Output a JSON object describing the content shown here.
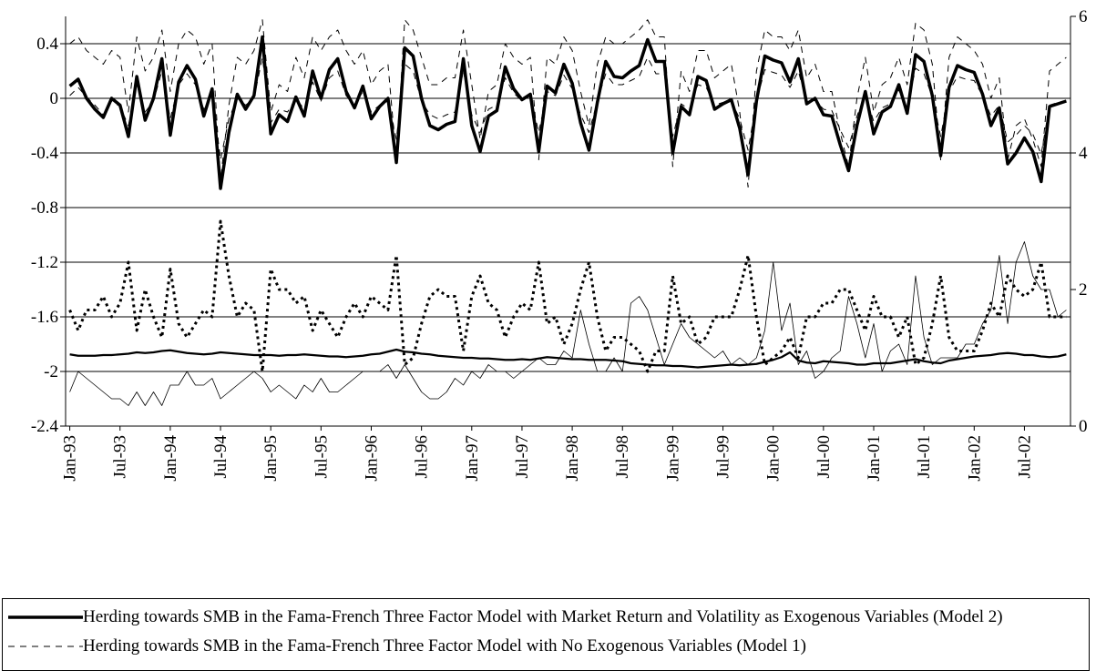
{
  "chart_data": {
    "type": "line",
    "categories": [
      "Jan-93",
      null,
      null,
      null,
      null,
      null,
      "Jul-93",
      null,
      null,
      null,
      null,
      null,
      "Jan-94",
      null,
      null,
      null,
      null,
      null,
      "Jul-94",
      null,
      null,
      null,
      null,
      null,
      "Jan-95",
      null,
      null,
      null,
      null,
      null,
      "Jul-95",
      null,
      null,
      null,
      null,
      null,
      "Jan-96",
      null,
      null,
      null,
      null,
      null,
      "Jul-96",
      null,
      null,
      null,
      null,
      null,
      "Jan-97",
      null,
      null,
      null,
      null,
      null,
      "Jul-97",
      null,
      null,
      null,
      null,
      null,
      "Jan-98",
      null,
      null,
      null,
      null,
      null,
      "Jul-98",
      null,
      null,
      null,
      null,
      null,
      "Jan-99",
      null,
      null,
      null,
      null,
      null,
      "Jul-99",
      null,
      null,
      null,
      null,
      null,
      "Jan-00",
      null,
      null,
      null,
      null,
      null,
      "Jul-00",
      null,
      null,
      null,
      null,
      null,
      "Jan-01",
      null,
      null,
      null,
      null,
      null,
      "Jul-01",
      null,
      null,
      null,
      null,
      null,
      "Jan-02",
      null,
      null,
      null,
      null,
      null,
      "Jul-02",
      null,
      null,
      null,
      null,
      null
    ],
    "ylim": [
      -2.4,
      0.6
    ],
    "yticks": [
      -2.4,
      -2,
      -1.6,
      -1.2,
      -0.8,
      -0.4,
      0,
      0.4
    ],
    "y2lim": [
      0,
      6
    ],
    "y2ticks": [
      0,
      2,
      4,
      6
    ],
    "grid": true,
    "series": [
      {
        "name": "Herding towards SMB in the Fama-French Three Factor Model with Market Return and Volatility as Exogenous Variables (Model 2)",
        "color": "#000000",
        "line_style": "solid",
        "width": 3.5,
        "values": [
          0.09,
          0.14,
          0,
          -0.08,
          -0.14,
          0,
          -0.05,
          -0.28,
          0.16,
          -0.16,
          0,
          0.29,
          -0.27,
          0.12,
          0.24,
          0.14,
          -0.13,
          0.07,
          -0.66,
          -0.25,
          0.03,
          -0.08,
          0.02,
          0.45,
          -0.26,
          -0.12,
          -0.17,
          0.01,
          -0.13,
          0.2,
          0,
          0.21,
          0.29,
          0.05,
          -0.07,
          0.09,
          -0.15,
          -0.06,
          0,
          -0.47,
          0.37,
          0.31,
          0,
          -0.2,
          -0.23,
          -0.19,
          -0.17,
          0.29,
          -0.2,
          -0.39,
          -0.13,
          -0.09,
          0.23,
          0.07,
          -0.01,
          0.03,
          -0.39,
          0.09,
          0.04,
          0.25,
          0.11,
          -0.18,
          -0.38,
          -0.03,
          0.27,
          0.16,
          0.15,
          0.2,
          0.24,
          0.43,
          0.27,
          0.27,
          -0.4,
          -0.06,
          -0.12,
          0.16,
          0.13,
          -0.08,
          -0.04,
          -0.01,
          -0.22,
          -0.56,
          -0.02,
          0.31,
          0.28,
          0.26,
          0.12,
          0.29,
          -0.04,
          0,
          -0.12,
          -0.13,
          -0.34,
          -0.53,
          -0.2,
          0.05,
          -0.26,
          -0.1,
          -0.06,
          0.1,
          -0.11,
          0.32,
          0.27,
          0.02,
          -0.42,
          0.08,
          0.24,
          0.21,
          0.19,
          0.03,
          -0.2,
          -0.07,
          -0.48,
          -0.4,
          -0.29,
          -0.39,
          -0.61,
          -0.06,
          -0.04,
          -0.02
        ]
      },
      {
        "name": "Herding towards SMB in the Fama-French Three Factor Model with No Exogenous Variables (Model 1)",
        "color": "#000000",
        "line_style": "dashed",
        "width": 1,
        "values": [
          0.02,
          0.08,
          0.01,
          -0.05,
          -0.12,
          -0.02,
          -0.06,
          -0.2,
          0.1,
          -0.1,
          -0.02,
          0.2,
          -0.15,
          0.1,
          0.18,
          0.1,
          -0.08,
          0.05,
          -0.45,
          -0.15,
          0,
          -0.05,
          0,
          0.3,
          -0.18,
          -0.08,
          -0.1,
          0,
          -0.08,
          0.12,
          -0.02,
          0.15,
          0.2,
          0.02,
          -0.05,
          0.05,
          -0.1,
          -0.05,
          -0.02,
          -0.3,
          0.25,
          0.2,
          -0.02,
          -0.12,
          -0.15,
          -0.12,
          -0.1,
          0.2,
          -0.12,
          -0.25,
          -0.08,
          -0.05,
          0.15,
          0.04,
          -0.02,
          0.02,
          -0.25,
          0.05,
          0.02,
          0.17,
          0.07,
          -0.12,
          -0.25,
          -0.02,
          0.18,
          0.1,
          0.1,
          0.13,
          0.16,
          0.3,
          0.18,
          0.18,
          -0.28,
          -0.04,
          -0.08,
          0.1,
          0.08,
          -0.05,
          -0.03,
          -0.02,
          -0.15,
          -0.38,
          -0.02,
          0.21,
          0.19,
          0.17,
          0.08,
          0.2,
          -0.03,
          -0.01,
          -0.08,
          -0.09,
          -0.23,
          -0.36,
          -0.13,
          0.03,
          -0.17,
          -0.07,
          -0.04,
          0.06,
          -0.07,
          0.22,
          0.18,
          0.01,
          -0.28,
          0.05,
          0.16,
          0.14,
          0.13,
          0.02,
          -0.13,
          -0.05,
          -0.32,
          -0.27,
          -0.2,
          -0.26,
          -0.41,
          -0.05,
          -0.03,
          -0.02
        ]
      },
      {
        "color": "#000000",
        "line_style": "dashed",
        "width": 1,
        "axis": "y2",
        "values": [
          5.6,
          5.7,
          5.5,
          5.4,
          5.3,
          5.5,
          5.4,
          4.6,
          5.7,
          5.2,
          5.4,
          5.8,
          4.9,
          5.6,
          5.8,
          5.7,
          5.3,
          5.6,
          3.6,
          4.7,
          5.4,
          5.3,
          5.5,
          5.95,
          4.6,
          5.0,
          4.9,
          5.4,
          5.1,
          5.7,
          5.5,
          5.7,
          5.8,
          5.5,
          5.3,
          5.5,
          5.0,
          5.2,
          5.3,
          3.9,
          5.95,
          5.8,
          5.4,
          5.0,
          5.0,
          5.1,
          5.1,
          5.8,
          5.0,
          4.2,
          4.9,
          5.0,
          5.6,
          5.4,
          5.3,
          5.4,
          3.9,
          5.4,
          5.3,
          5.7,
          5.5,
          4.9,
          4.4,
          5.3,
          5.7,
          5.6,
          5.6,
          5.7,
          5.8,
          5.95,
          5.7,
          5.7,
          3.8,
          5.2,
          4.9,
          5.5,
          5.5,
          5.1,
          5.2,
          5.3,
          4.6,
          3.5,
          5.2,
          5.8,
          5.7,
          5.7,
          5.5,
          5.8,
          5.1,
          5.3,
          4.9,
          4.9,
          4.3,
          3.8,
          4.8,
          5.4,
          4.6,
          5.0,
          5.1,
          5.4,
          5.0,
          5.9,
          5.8,
          5.3,
          3.9,
          5.4,
          5.7,
          5.6,
          5.5,
          5.3,
          4.8,
          5.1,
          3.9,
          4.4,
          4.5,
          4.2,
          3.8,
          5.2,
          5.3,
          5.4
        ]
      },
      {
        "color": "#000000",
        "line_style": "dotted",
        "width": 3,
        "axis": "y2",
        "values": [
          1.7,
          1.4,
          1.7,
          1.7,
          1.9,
          1.6,
          1.8,
          2.4,
          1.4,
          2.0,
          1.6,
          1.3,
          2.3,
          1.5,
          1.3,
          1.5,
          1.7,
          1.6,
          3.0,
          2.2,
          1.6,
          1.8,
          1.7,
          0.8,
          2.3,
          2.0,
          2.0,
          1.8,
          1.9,
          1.4,
          1.7,
          1.5,
          1.3,
          1.6,
          1.8,
          1.6,
          1.9,
          1.8,
          1.7,
          2.5,
          0.9,
          1.0,
          1.5,
          1.9,
          2.0,
          1.9,
          1.9,
          1.1,
          1.9,
          2.2,
          1.8,
          1.7,
          1.3,
          1.6,
          1.8,
          1.7,
          2.4,
          1.5,
          1.6,
          1.2,
          1.5,
          2.0,
          2.4,
          1.6,
          1.1,
          1.3,
          1.3,
          1.2,
          1.1,
          0.8,
          1.1,
          1.1,
          2.2,
          1.5,
          1.6,
          1.2,
          1.3,
          1.6,
          1.6,
          1.6,
          2.0,
          2.5,
          1.6,
          0.9,
          1.0,
          1.1,
          1.3,
          1.0,
          1.6,
          1.6,
          1.8,
          1.8,
          2.0,
          2.0,
          1.7,
          1.4,
          1.9,
          1.6,
          1.6,
          1.3,
          1.6,
          0.9,
          1.0,
          1.5,
          2.2,
          1.3,
          1.1,
          1.1,
          1.1,
          1.4,
          1.8,
          1.6,
          2.2,
          2.0,
          1.9,
          2.0,
          2.4,
          1.6,
          1.6,
          1.6
        ]
      },
      {
        "color": "#000000",
        "line_style": "solid",
        "width": 0.8,
        "axis": "y2",
        "values": [
          0.5,
          0.8,
          0.7,
          0.6,
          0.5,
          0.4,
          0.4,
          0.3,
          0.5,
          0.3,
          0.5,
          0.3,
          0.6,
          0.6,
          0.8,
          0.6,
          0.6,
          0.7,
          0.4,
          0.5,
          0.6,
          0.7,
          0.8,
          0.7,
          0.5,
          0.6,
          0.5,
          0.4,
          0.6,
          0.5,
          0.7,
          0.5,
          0.5,
          0.6,
          0.7,
          0.8,
          0.8,
          0.8,
          0.9,
          0.7,
          0.9,
          0.7,
          0.5,
          0.4,
          0.4,
          0.5,
          0.7,
          0.6,
          0.8,
          0.7,
          0.9,
          0.8,
          0.8,
          0.7,
          0.8,
          0.9,
          1.0,
          0.9,
          0.9,
          1.1,
          1.0,
          1.7,
          1.2,
          0.8,
          0.8,
          1.0,
          0.8,
          1.8,
          1.9,
          1.7,
          1.3,
          0.9,
          1.2,
          1.5,
          1.3,
          1.2,
          1.1,
          1.0,
          1.1,
          0.9,
          1.0,
          0.9,
          1.0,
          1.4,
          2.4,
          1.4,
          1.8,
          0.9,
          1.1,
          0.7,
          0.8,
          1.0,
          1.1,
          1.9,
          1.5,
          1.0,
          1.5,
          0.8,
          1.1,
          1.2,
          0.9,
          2.2,
          1.3,
          0.9,
          1.0,
          1.0,
          1.0,
          1.2,
          1.2,
          1.5,
          1.7,
          2.5,
          1.5,
          2.4,
          2.7,
          2.2,
          2.0,
          2.0,
          1.6,
          1.7
        ]
      },
      {
        "color": "#000000",
        "line_style": "solid",
        "width": 2.2,
        "axis": "y2",
        "values": [
          1.05,
          1.03,
          1.03,
          1.03,
          1.04,
          1.04,
          1.05,
          1.06,
          1.08,
          1.07,
          1.08,
          1.1,
          1.11,
          1.09,
          1.07,
          1.06,
          1.05,
          1.06,
          1.08,
          1.07,
          1.06,
          1.05,
          1.04,
          1.04,
          1.04,
          1.03,
          1.04,
          1.04,
          1.05,
          1.04,
          1.03,
          1.02,
          1.02,
          1.01,
          1.02,
          1.03,
          1.05,
          1.06,
          1.09,
          1.12,
          1.09,
          1.08,
          1.06,
          1.05,
          1.03,
          1.02,
          1.01,
          1.0,
          1.0,
          0.99,
          0.99,
          0.98,
          0.97,
          0.97,
          0.98,
          0.97,
          0.99,
          1.01,
          1.0,
          0.99,
          0.98,
          0.98,
          0.97,
          0.97,
          0.97,
          0.96,
          0.95,
          0.92,
          0.91,
          0.9,
          0.89,
          0.89,
          0.88,
          0.88,
          0.87,
          0.86,
          0.87,
          0.88,
          0.89,
          0.9,
          0.89,
          0.9,
          0.91,
          0.94,
          0.97,
          1.01,
          1.08,
          0.96,
          0.93,
          0.92,
          0.95,
          0.94,
          0.93,
          0.92,
          0.9,
          0.9,
          0.92,
          0.92,
          0.92,
          0.94,
          0.96,
          0.98,
          0.95,
          0.93,
          0.92,
          0.96,
          0.98,
          1.0,
          1.02,
          1.03,
          1.04,
          1.06,
          1.07,
          1.06,
          1.04,
          1.04,
          1.02,
          1.01,
          1.02,
          1.05
        ]
      }
    ]
  }
}
